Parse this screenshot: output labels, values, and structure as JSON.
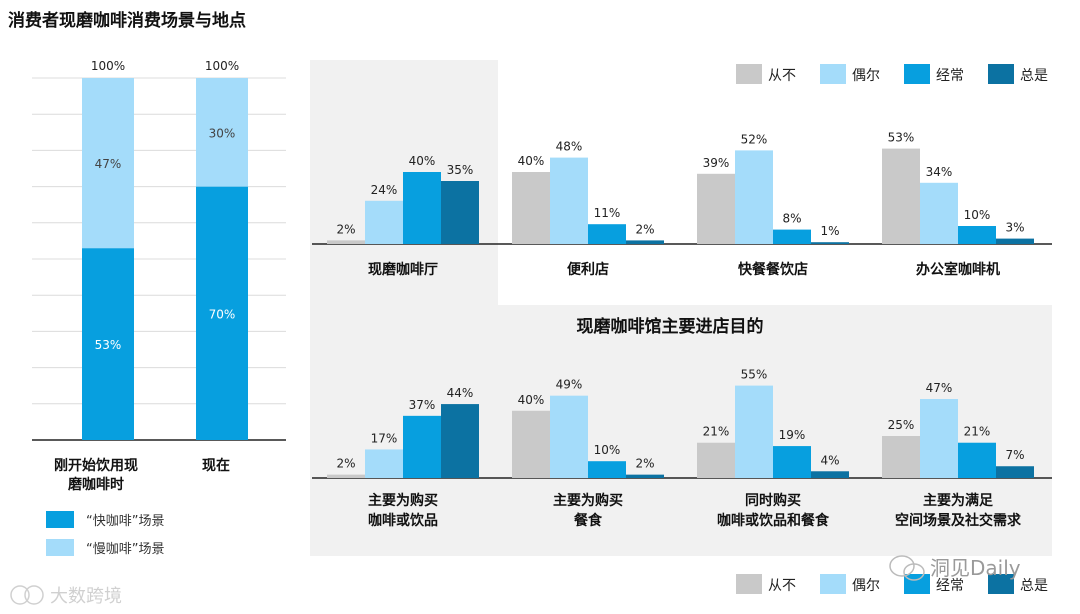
{
  "title": "消费者现磨咖啡消费场景与地点",
  "colors": {
    "never": "#c9c9c9",
    "occasionally": "#a4dcfa",
    "often": "#079fdf",
    "always": "#0c72a2",
    "panel": "#f1f1f1"
  },
  "legend_top": [
    "从不",
    "偶尔",
    "经常",
    "总是"
  ],
  "legend_bottom": [
    "从不",
    "偶尔",
    "经常",
    "总是"
  ],
  "left_legend": [
    "“快咖啡”场景",
    "“慢咖啡”场景"
  ],
  "watermarks": {
    "left": "大数跨境",
    "right": "洞见Daily"
  },
  "chart_data": [
    {
      "type": "bar",
      "stacked": true,
      "categories": [
        "刚开始饮用现磨咖啡时",
        "现在"
      ],
      "category_lines": [
        [
          "刚开始饮用现",
          "磨咖啡时"
        ],
        [
          "现在"
        ]
      ],
      "totals": [
        "100%",
        "100%"
      ],
      "series": [
        {
          "name": "“快咖啡”场景",
          "values": [
            53,
            70
          ]
        },
        {
          "name": "“慢咖啡”场景",
          "values": [
            47,
            30
          ]
        }
      ],
      "ylim": [
        0,
        100
      ]
    },
    {
      "type": "bar",
      "title": "",
      "categories": [
        "现磨咖啡厅",
        "便利店",
        "快餐餐饮店",
        "办公室咖啡机"
      ],
      "category_lines": [
        [
          "现磨咖啡厅"
        ],
        [
          "便利店"
        ],
        [
          "快餐餐饮店"
        ],
        [
          "办公室咖啡机"
        ]
      ],
      "series": [
        {
          "name": "从不",
          "values": [
            2,
            40,
            39,
            53
          ]
        },
        {
          "name": "偶尔",
          "values": [
            24,
            48,
            52,
            34
          ]
        },
        {
          "name": "经常",
          "values": [
            40,
            11,
            8,
            10
          ]
        },
        {
          "name": "总是",
          "values": [
            35,
            2,
            1,
            3
          ]
        }
      ],
      "ylim": [
        0,
        55
      ]
    },
    {
      "type": "bar",
      "title": "现磨咖啡馆主要进店目的",
      "categories": [
        "主要为购买咖啡或饮品",
        "主要为购买餐食",
        "同时购买咖啡或饮品和餐食",
        "主要为满足空间场景及社交需求"
      ],
      "category_lines": [
        [
          "主要为购买",
          "咖啡或饮品"
        ],
        [
          "主要为购买",
          "餐食"
        ],
        [
          "同时购买",
          "咖啡或饮品和餐食"
        ],
        [
          "主要为满足",
          "空间场景及社交需求"
        ]
      ],
      "series": [
        {
          "name": "从不",
          "values": [
            2,
            40,
            21,
            25
          ]
        },
        {
          "name": "偶尔",
          "values": [
            17,
            49,
            55,
            47
          ]
        },
        {
          "name": "经常",
          "values": [
            37,
            10,
            19,
            21
          ]
        },
        {
          "name": "总是",
          "values": [
            44,
            2,
            4,
            7
          ]
        }
      ],
      "ylim": [
        0,
        55
      ]
    }
  ]
}
